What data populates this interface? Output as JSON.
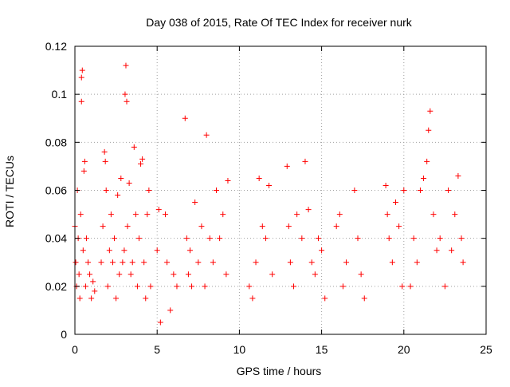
{
  "chart_data": {
    "type": "scatter",
    "title": "Day 038 of 2015, Rate Of TEC Index for receiver nurk",
    "xlabel": "GPS time / hours",
    "ylabel": "ROTI / TECUs",
    "xlim": [
      0,
      25
    ],
    "ylim": [
      0,
      0.12
    ],
    "xticks": [
      0,
      5,
      10,
      15,
      20,
      25
    ],
    "yticks": [
      0,
      0.02,
      0.04,
      0.06,
      0.08,
      0.1,
      0.12
    ],
    "xtick_labels": [
      "0",
      "5",
      "10",
      "15",
      "20",
      "25"
    ],
    "ytick_labels": [
      "0",
      "0.02",
      "0.04",
      "0.06",
      "0.08",
      "0.1",
      "0.12"
    ],
    "grid": true,
    "marker": "+",
    "color": "#ff0000",
    "series": [
      {
        "x": [
          0.0,
          0.05,
          0.1,
          0.15,
          0.2,
          0.25,
          0.3,
          0.35,
          0.4,
          0.4,
          0.45,
          0.5,
          0.55,
          0.6,
          0.65,
          0.7,
          0.8,
          0.9,
          1.0,
          1.1,
          1.2,
          1.6,
          1.7,
          1.8,
          1.85,
          1.9,
          2.0,
          2.1,
          2.2,
          2.3,
          2.4,
          2.5,
          2.6,
          2.7,
          2.8,
          2.9,
          3.0,
          3.05,
          3.1,
          3.15,
          3.2,
          3.3,
          3.4,
          3.5,
          3.6,
          3.7,
          3.8,
          3.9,
          4.0,
          4.1,
          4.2,
          4.3,
          4.4,
          4.5,
          4.6,
          5.0,
          5.1,
          5.2,
          5.5,
          5.6,
          5.8,
          6.0,
          6.2,
          6.7,
          6.8,
          6.9,
          7.0,
          7.1,
          7.3,
          7.5,
          7.7,
          7.9,
          8.0,
          8.2,
          8.4,
          8.6,
          8.8,
          9.0,
          9.2,
          9.3,
          10.6,
          10.8,
          11.0,
          11.2,
          11.4,
          11.6,
          11.8,
          12.0,
          12.9,
          13.0,
          13.1,
          13.3,
          13.5,
          13.8,
          14.0,
          14.2,
          14.4,
          14.6,
          14.8,
          15.0,
          15.2,
          15.9,
          16.1,
          16.3,
          16.5,
          17.0,
          17.2,
          17.4,
          17.6,
          18.9,
          19.0,
          19.1,
          19.3,
          19.5,
          19.7,
          19.9,
          20.0,
          20.4,
          20.6,
          20.8,
          21.0,
          21.2,
          21.4,
          21.5,
          21.6,
          21.8,
          22.0,
          22.2,
          22.5,
          22.7,
          22.9,
          23.1,
          23.3,
          23.5,
          23.6
        ],
        "y": [
          0.045,
          0.03,
          0.02,
          0.06,
          0.04,
          0.025,
          0.015,
          0.05,
          0.107,
          0.097,
          0.11,
          0.035,
          0.068,
          0.072,
          0.02,
          0.04,
          0.03,
          0.025,
          0.015,
          0.022,
          0.018,
          0.03,
          0.045,
          0.076,
          0.072,
          0.06,
          0.02,
          0.035,
          0.05,
          0.03,
          0.04,
          0.015,
          0.058,
          0.025,
          0.065,
          0.03,
          0.035,
          0.1,
          0.112,
          0.097,
          0.045,
          0.063,
          0.025,
          0.03,
          0.078,
          0.05,
          0.02,
          0.04,
          0.071,
          0.073,
          0.03,
          0.015,
          0.05,
          0.06,
          0.02,
          0.035,
          0.052,
          0.005,
          0.05,
          0.03,
          0.01,
          0.025,
          0.02,
          0.09,
          0.04,
          0.025,
          0.035,
          0.02,
          0.055,
          0.03,
          0.045,
          0.02,
          0.083,
          0.04,
          0.03,
          0.06,
          0.04,
          0.05,
          0.025,
          0.064,
          0.02,
          0.015,
          0.03,
          0.065,
          0.045,
          0.04,
          0.062,
          0.025,
          0.07,
          0.045,
          0.03,
          0.02,
          0.05,
          0.04,
          0.072,
          0.052,
          0.03,
          0.025,
          0.04,
          0.035,
          0.015,
          0.045,
          0.05,
          0.02,
          0.03,
          0.06,
          0.04,
          0.025,
          0.015,
          0.062,
          0.05,
          0.04,
          0.03,
          0.055,
          0.045,
          0.02,
          0.06,
          0.02,
          0.04,
          0.03,
          0.06,
          0.065,
          0.072,
          0.085,
          0.093,
          0.05,
          0.035,
          0.04,
          0.02,
          0.06,
          0.035,
          0.05,
          0.066,
          0.04,
          0.03
        ]
      }
    ]
  }
}
